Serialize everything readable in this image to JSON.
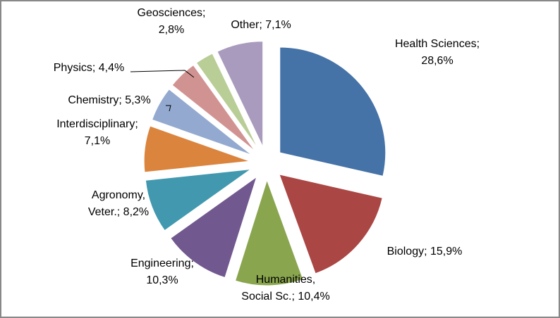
{
  "chart_data": {
    "type": "pie",
    "values": [
      28.6,
      15.9,
      10.4,
      10.3,
      8.2,
      7.1,
      5.3,
      4.4,
      2.8,
      7.1
    ],
    "value_labels": [
      [
        "Health Sciences;",
        "28,6%"
      ],
      [
        "Biology; 15,9%"
      ],
      [
        "Humanities,",
        "Social Sc.; 10,4%"
      ],
      [
        "Engineering;",
        "10,3%"
      ],
      [
        "Agronomy,",
        "Veter.; 8,2%"
      ],
      [
        "Interdisciplinary;",
        "7,1%"
      ],
      [
        "Chemistry; 5,3%"
      ],
      [
        "Physics; 4,4%"
      ],
      [
        "Geosciences;",
        "2,8%"
      ],
      [
        "Other; 7,1%"
      ]
    ],
    "colors": [
      "#4572a7",
      "#aa4643",
      "#89a54e",
      "#71588f",
      "#4198af",
      "#db843d",
      "#93a9cf",
      "#d19392",
      "#b9cd96",
      "#a99bbd"
    ]
  }
}
